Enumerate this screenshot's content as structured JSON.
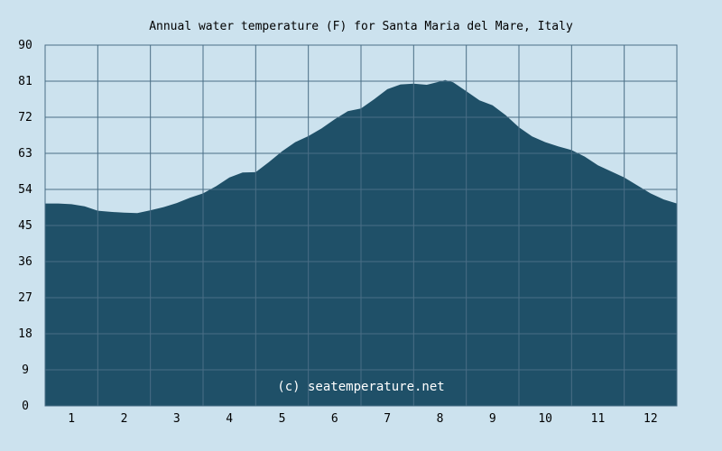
{
  "colors": {
    "background": "#cce2ee",
    "area_fill": "#1f5068",
    "grid": "#4a6e86",
    "text": "#000000",
    "watermark": "#ffffff"
  },
  "chart_data": {
    "type": "area",
    "title": "Annual water temperature (F) for Santa Maria del Mare, Italy",
    "watermark": "(c) seatemperature.net",
    "xlabel": "",
    "ylabel": "",
    "x_ticks": [
      "1",
      "2",
      "3",
      "4",
      "5",
      "6",
      "7",
      "8",
      "9",
      "10",
      "11",
      "12"
    ],
    "y_ticks": [
      0,
      9,
      18,
      27,
      36,
      45,
      54,
      63,
      72,
      81,
      90
    ],
    "ylim": [
      0,
      90
    ],
    "xlim": [
      0.5,
      12.5
    ],
    "grid": true,
    "series": [
      {
        "x": [
          0.5,
          0.75,
          1.0,
          1.25,
          1.5,
          1.75,
          2.0,
          2.25,
          2.5,
          2.75,
          3.0,
          3.25,
          3.5,
          3.75,
          4.0,
          4.25,
          4.5,
          4.75,
          5.0,
          5.25,
          5.5,
          5.75,
          6.0,
          6.25,
          6.5,
          6.75,
          7.0,
          7.25,
          7.5,
          7.75,
          8.0,
          8.1,
          8.25,
          8.5,
          8.75,
          9.0,
          9.25,
          9.5,
          9.75,
          10.0,
          10.25,
          10.5,
          10.75,
          11.0,
          11.25,
          11.5,
          11.75,
          12.0,
          12.25,
          12.5
        ],
        "values": [
          50.5,
          50.5,
          50.3,
          49.8,
          48.7,
          48.4,
          48.2,
          48.1,
          48.8,
          49.6,
          50.6,
          51.9,
          53.0,
          54.8,
          57.0,
          58.2,
          58.3,
          60.8,
          63.5,
          65.8,
          67.3,
          69.2,
          71.5,
          73.5,
          74.2,
          76.5,
          79.0,
          80.2,
          80.4,
          80.1,
          80.9,
          81.3,
          80.7,
          78.5,
          76.2,
          75.0,
          72.5,
          69.5,
          67.2,
          65.8,
          64.7,
          63.8,
          62.2,
          60.0,
          58.5,
          57.0,
          55.0,
          53.0,
          51.5,
          50.5
        ]
      }
    ]
  }
}
